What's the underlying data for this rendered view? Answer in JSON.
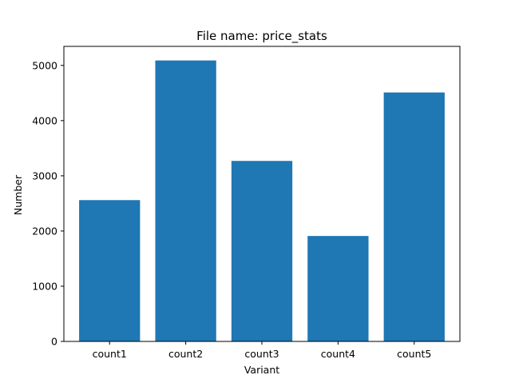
{
  "chart_data": {
    "type": "bar",
    "title": "File name: price_stats",
    "xlabel": "Variant",
    "ylabel": "Number",
    "categories": [
      "count1",
      "count2",
      "count3",
      "count4",
      "count5"
    ],
    "values": [
      2560,
      5090,
      3270,
      1910,
      4510
    ],
    "ylim": [
      0,
      5345
    ],
    "yticks": [
      0,
      1000,
      2000,
      3000,
      4000,
      5000
    ],
    "bar_color": "#1f77b4",
    "grid": false,
    "legend": "none"
  }
}
